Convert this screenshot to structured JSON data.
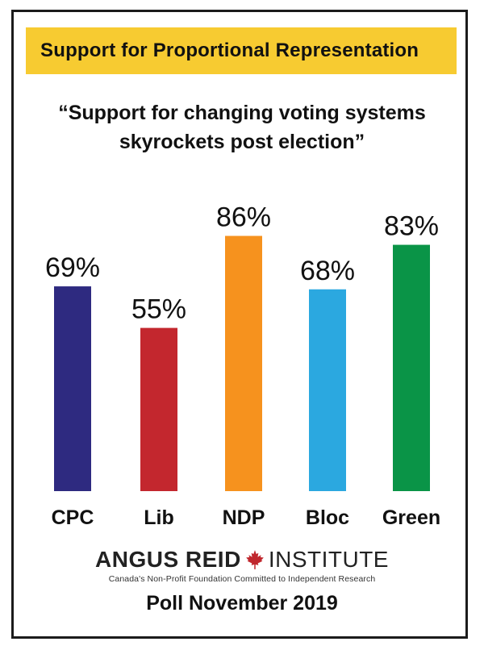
{
  "header": {
    "banner": "Support for Proportional Representation"
  },
  "chart_data": {
    "type": "bar",
    "title": "“Support for changing voting systems skyrockets post election”",
    "title_lines": [
      "“Support for changing voting systems",
      "skyrockets post election”"
    ],
    "categories": [
      "CPC",
      "Lib",
      "NDP",
      "Bloc",
      "Green"
    ],
    "values": [
      69,
      55,
      86,
      68,
      83
    ],
    "value_labels": [
      "69%",
      "55%",
      "86%",
      "68%",
      "83%"
    ],
    "colors": [
      "#2e2a80",
      "#c3272e",
      "#f6921e",
      "#2ba8e0",
      "#0a9447"
    ],
    "ylim": [
      0,
      100
    ],
    "grid": false,
    "legend": "none"
  },
  "branding": {
    "logo_strong": "ANGUS REID",
    "logo_light": "INSTITUTE",
    "maple_color": "#c0272d",
    "tagline": "Canada's Non-Profit Foundation Committed to Independent Research"
  },
  "footer": {
    "text": "Poll November 2019"
  },
  "colors": {
    "banner": "#f7cb31",
    "frame": "#1b1b1b"
  }
}
